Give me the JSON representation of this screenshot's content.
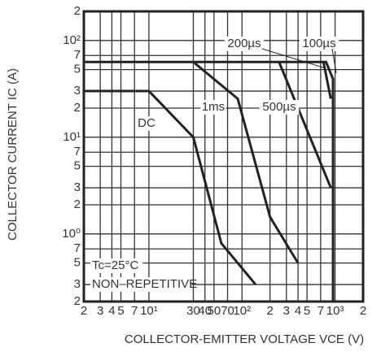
{
  "chart_data": {
    "type": "line",
    "xlabel": "COLLECTOR-EMITTER VOLTAGE   VCE (V)",
    "ylabel": "COLLECTOR CURRENT   IC (A)",
    "log_x": true,
    "log_y": true,
    "grid": true,
    "xlim": [
      2,
      2000
    ],
    "ylim": [
      0.2,
      200
    ],
    "xticks": [
      2,
      3,
      4,
      5,
      7,
      {
        "value": 10,
        "label": "10¹"
      },
      30,
      40,
      50,
      70,
      {
        "value": 100,
        "label": "10²"
      },
      {
        "value": 200,
        "label": "2"
      },
      {
        "value": 300,
        "label": "3"
      },
      {
        "value": 400,
        "label": "4"
      },
      {
        "value": 500,
        "label": "5"
      },
      {
        "value": 700,
        "label": "7"
      },
      {
        "value": 1000,
        "label": "10³"
      },
      {
        "value": 2000,
        "label": "2"
      }
    ],
    "yticks": [
      {
        "value": 0.2,
        "label": "2"
      },
      {
        "value": 0.3,
        "label": "3"
      },
      {
        "value": 0.5,
        "label": "5"
      },
      {
        "value": 0.7,
        "label": "7"
      },
      {
        "value": 1,
        "label": "10⁰"
      },
      2,
      3,
      5,
      7,
      {
        "value": 10,
        "label": "10¹"
      },
      {
        "value": 20,
        "label": "2"
      },
      {
        "value": 30,
        "label": "3"
      },
      {
        "value": 50,
        "label": "5"
      },
      {
        "value": 70,
        "label": "7"
      },
      {
        "value": 100,
        "label": "10²"
      },
      {
        "value": 200,
        "label": "2"
      }
    ],
    "series": [
      {
        "name": "100µs",
        "color": "#222",
        "x": [
          2,
          800,
          950,
          950
        ],
        "values": [
          60,
          60,
          40,
          0.2
        ]
      },
      {
        "name": "200µs",
        "color": "#222",
        "x": [
          750,
          900
        ],
        "values": [
          60,
          25
        ]
      },
      {
        "name": "500µs",
        "color": "#222",
        "x": [
          250,
          900
        ],
        "values": [
          60,
          3
        ]
      },
      {
        "name": "1ms",
        "color": "#222",
        "x": [
          30,
          90,
          200,
          400
        ],
        "values": [
          60,
          25,
          1.5,
          0.5
        ]
      },
      {
        "name": "DC",
        "color": "#222",
        "x": [
          2,
          10,
          30,
          60,
          140
        ],
        "values": [
          30,
          30,
          10,
          0.8,
          0.3
        ]
      }
    ],
    "annotations": [
      "Tc=25°C",
      "NON–REPETITIVE"
    ]
  }
}
